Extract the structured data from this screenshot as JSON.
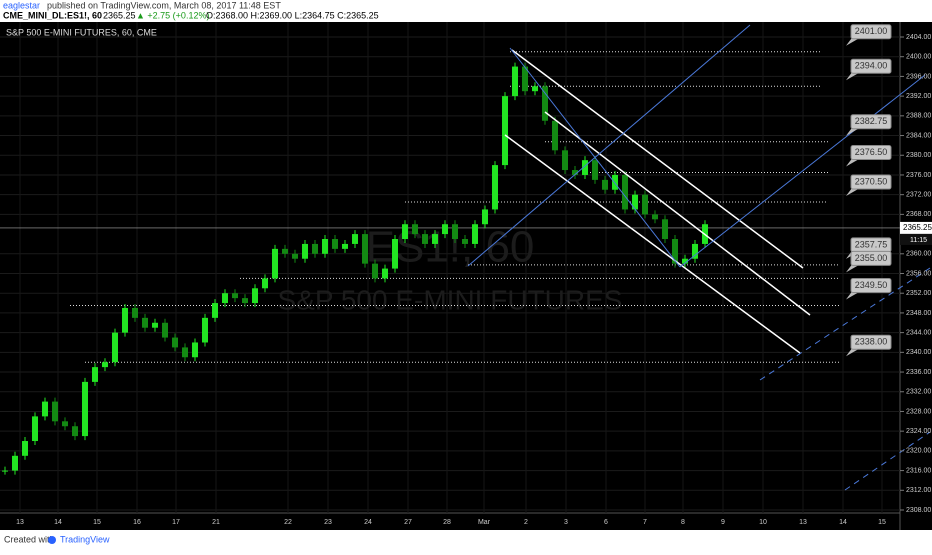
{
  "header": {
    "author": "eaglestar",
    "published": "published on TradingView.com, March 08, 2017 11:48 EST",
    "symbol": "CME_MINI_DL:ES1!, 60",
    "quote": "2365.25",
    "change": "▲ +2.75 (+0.12%)",
    "ohlc": "O:2368.00 H:2369.00 L:2364.75 C:2365.25"
  },
  "chart_title": "S&P 500 E-MINI FUTURES, 60, CME",
  "watermark": {
    "symbol": "ES1!, 60",
    "name": "S&P 500 E-MINI FUTURES"
  },
  "chart_data": {
    "type": "candlestick",
    "color_up": "#22e622",
    "color_down": "#138a13",
    "closes": [
      2316,
      2319,
      2322,
      2327,
      2330,
      2326,
      2325,
      2323,
      2334,
      2337,
      2338,
      2344,
      2349,
      2347,
      2345,
      2346,
      2343,
      2341,
      2339,
      2342,
      2347,
      2350,
      2352,
      2351,
      2350,
      2353,
      2355,
      2361,
      2360,
      2359,
      2362,
      2360,
      2363,
      2361,
      2362,
      2364,
      2358,
      2355,
      2357,
      2363,
      2366,
      2364,
      2362,
      2364,
      2366,
      2363,
      2362,
      2366,
      2369,
      2378,
      2392,
      2398,
      2393,
      2394,
      2387,
      2381,
      2377,
      2376,
      2379,
      2375,
      2373,
      2376,
      2369,
      2372,
      2368,
      2367,
      2363,
      2358,
      2359,
      2362,
      2366
    ],
    "ylim": [
      2308,
      2404
    ],
    "yticks": [
      {
        "value": 2404,
        "label": "2404.00"
      },
      {
        "value": 2400,
        "label": "2400.00"
      },
      {
        "value": 2396,
        "label": "2396.00"
      },
      {
        "value": 2392,
        "label": "2392.00"
      },
      {
        "value": 2388,
        "label": "2388.00"
      },
      {
        "value": 2384,
        "label": "2384.00"
      },
      {
        "value": 2380,
        "label": "2380.00"
      },
      {
        "value": 2376,
        "label": "2376.00"
      },
      {
        "value": 2372,
        "label": "2372.00"
      },
      {
        "value": 2368,
        "label": "2368.00"
      },
      {
        "value": 2360,
        "label": "2360.00"
      },
      {
        "value": 2356,
        "label": "2356.00"
      },
      {
        "value": 2352,
        "label": "2352.00"
      },
      {
        "value": 2348,
        "label": "2348.00"
      },
      {
        "value": 2344,
        "label": "2344.00"
      },
      {
        "value": 2340,
        "label": "2340.00"
      },
      {
        "value": 2336,
        "label": "2336.00"
      },
      {
        "value": 2332,
        "label": "2332.00"
      },
      {
        "value": 2328,
        "label": "2328.00"
      },
      {
        "value": 2324,
        "label": "2324.00"
      },
      {
        "value": 2320,
        "label": "2320.00"
      },
      {
        "value": 2316,
        "label": "2316.00"
      },
      {
        "value": 2312,
        "label": "2312.00"
      },
      {
        "value": 2308,
        "label": "2308.00"
      }
    ],
    "categories": [
      "13",
      "14",
      "15",
      "16",
      "17",
      "21",
      "22",
      "23",
      "24",
      "27",
      "28",
      "Mar",
      "2",
      "3",
      "6",
      "7",
      "8",
      "9",
      "10",
      "13",
      "14",
      "15"
    ],
    "last_price": {
      "value": 2365.25,
      "label": "2365.25"
    },
    "countdown": "11:15",
    "levels": [
      {
        "value": 2401,
        "label": "2401.00"
      },
      {
        "value": 2394,
        "label": "2394.00"
      },
      {
        "value": 2382.75,
        "label": "2382.75"
      },
      {
        "value": 2376.5,
        "label": "2376.50"
      },
      {
        "value": 2370.5,
        "label": "2370.50"
      },
      {
        "value": 2357.75,
        "label": "2357.75"
      },
      {
        "value": 2355,
        "label": "2355.00"
      },
      {
        "value": 2349.5,
        "label": "2349.50"
      },
      {
        "value": 2338,
        "label": "2338.00"
      }
    ]
  },
  "footer": {
    "created": "Created with",
    "brand": "TradingView"
  }
}
